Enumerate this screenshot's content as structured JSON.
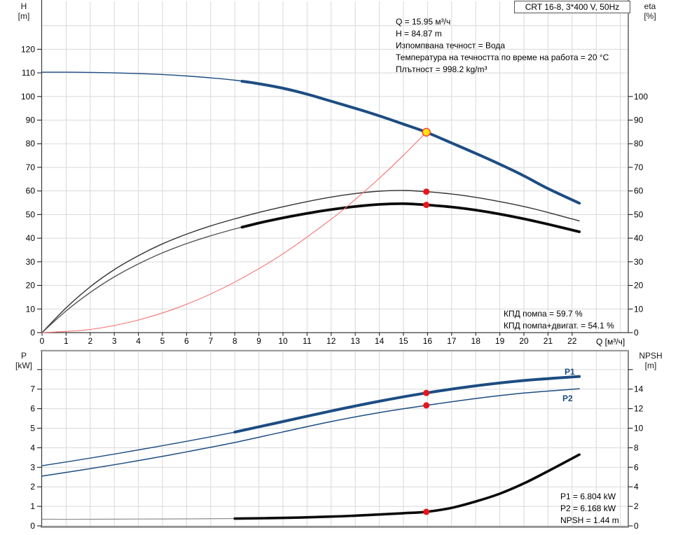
{
  "title_box": {
    "label": "CRT 16-8, 3*400 V, 50Hz"
  },
  "top_chart": {
    "left_axis_title": [
      "H",
      "[m]"
    ],
    "right_axis_title": [
      "eta",
      "[%]"
    ],
    "x_axis_label": "Q [м³/ч]",
    "info_lines": [
      "Q = 15.95 м³/ч",
      "H = 84.87 m",
      "Изпомпвана течност = Вода",
      "Температура на течността по време на работа = 20 °C",
      "Плътност = 998.2 kg/m³"
    ],
    "efficiency_lines": [
      "КПД помпа = 59.7 %",
      "КПД помпа+двигат. = 54.1 %"
    ]
  },
  "bottom_chart": {
    "left_axis_title": [
      "P",
      "[kW]"
    ],
    "right_axis_title": [
      "NPSH",
      "[m]"
    ],
    "curve_labels": {
      "p1": "P1",
      "p2": "P2"
    },
    "result_lines": [
      "P1 = 6.804 kW",
      "P2 = 6.168 kW",
      "NPSH = 1.44 m"
    ]
  },
  "colors": {
    "navy": "#1d4d82",
    "system_red": "#f47272",
    "dot_red": "#e8151c",
    "op_yellow": "#ffe40a",
    "op_ring": "#ff3c3c",
    "grid": "#d9d9d9",
    "axis": "#3a3a3a",
    "border_gray": "#909090",
    "eta_pump": "#333333",
    "eta_total_thin": "#555555",
    "black": "#0a0a0a",
    "npsh_thin": "#8f8f8f"
  },
  "chart_data": [
    {
      "type": "line",
      "title": "CRT 16-8, 3*400 V, 50Hz — QH / efficiency curves",
      "xlabel": "Q [м³/ч]",
      "ylabel_left": "H [m]",
      "ylabel_right": "eta [%]",
      "xlim": [
        0,
        24.33
      ],
      "ylim_left": [
        0,
        140.3
      ],
      "ylim_right": [
        0,
        140.3
      ],
      "x_ticks": [
        0,
        1,
        2,
        3,
        4,
        5,
        6,
        7,
        8,
        9,
        10,
        11,
        12,
        13,
        14,
        15,
        16,
        17,
        18,
        19,
        20,
        21,
        22
      ],
      "left_ticks": [
        0,
        10,
        20,
        30,
        40,
        50,
        60,
        70,
        80,
        90,
        100,
        110,
        120
      ],
      "right_ticks": [
        0,
        10,
        20,
        30,
        40,
        50,
        60,
        70,
        80,
        90,
        100
      ],
      "grid": true,
      "series": [
        {
          "name": "h-curve",
          "color": "#1d4d82",
          "thin": 1.4,
          "thick": 4,
          "thick_from": 8.3,
          "x": [
            0,
            1,
            2,
            3,
            4,
            5,
            6,
            7,
            8,
            9,
            10,
            11,
            12,
            13,
            14,
            15,
            15.95,
            17,
            18,
            19,
            20,
            21,
            22.3
          ],
          "y": [
            110.3,
            110.3,
            110.2,
            110.0,
            109.7,
            109.3,
            108.7,
            107.9,
            106.9,
            105.4,
            103.5,
            101.0,
            98.0,
            95.0,
            91.8,
            88.3,
            84.87,
            80.3,
            75.9,
            71.3,
            66.4,
            61.0,
            54.8
          ]
        },
        {
          "name": "eta-pump-curve",
          "color": "#333333",
          "thin": 1.4,
          "thick": 1.4,
          "thick_from": null,
          "x": [
            0,
            1,
            2,
            3,
            4,
            5,
            6,
            7,
            8,
            9,
            10,
            11,
            12,
            13,
            14,
            15,
            15.95,
            17,
            18,
            19,
            20,
            21,
            22.3
          ],
          "y": [
            0,
            10.5,
            19.4,
            26.7,
            32.6,
            37.6,
            41.7,
            45.2,
            48.2,
            50.9,
            53.3,
            55.5,
            57.4,
            58.9,
            59.9,
            60.2,
            59.7,
            58.7,
            57.3,
            55.5,
            53.4,
            50.9,
            47.3
          ]
        },
        {
          "name": "eta-total-curve",
          "color": "#555555",
          "thick_color": "#0a0a0a",
          "thin": 1.4,
          "thick": 3.8,
          "thick_from": 8.3,
          "x": [
            0,
            1,
            2,
            3,
            4,
            5,
            6,
            7,
            8,
            9,
            10,
            11,
            12,
            13,
            14,
            15,
            15.95,
            17,
            18,
            19,
            20,
            21,
            22.3
          ],
          "y": [
            0,
            9.2,
            17.0,
            23.6,
            29.1,
            33.8,
            37.7,
            41.0,
            43.9,
            46.4,
            48.6,
            50.5,
            52.1,
            53.4,
            54.3,
            54.6,
            54.1,
            53.2,
            51.9,
            50.2,
            48.2,
            45.9,
            42.7
          ]
        },
        {
          "name": "system-curve",
          "color": "#f47272",
          "thin": 1.1,
          "thick": 1.1,
          "thick_from": null,
          "x": [
            0,
            2,
            4,
            6,
            8,
            10,
            12,
            13,
            14,
            15,
            15.95
          ],
          "y": [
            0,
            1.33,
            5.34,
            12.0,
            21.4,
            33.4,
            48.0,
            56.4,
            65.4,
            75.1,
            84.87
          ]
        }
      ],
      "markers": [
        {
          "name": "operating-point",
          "q": 15.95,
          "v": 84.87,
          "style": "yellow"
        },
        {
          "name": "eta-pump-dot",
          "q": 15.95,
          "v": 59.7,
          "style": "red"
        },
        {
          "name": "eta-total-dot",
          "q": 15.95,
          "v": 54.1,
          "style": "red"
        }
      ]
    },
    {
      "type": "line",
      "title": "Power and NPSH curves",
      "xlabel": "Q [м³/ч]",
      "ylabel_left": "P [kW]",
      "ylabel_right": "NPSH [m]",
      "xlim": [
        0,
        24.33
      ],
      "ylim_left": [
        0,
        9.0
      ],
      "ylim_right": [
        0,
        18.0
      ],
      "left_ticks": [
        0,
        1,
        2,
        3,
        4,
        5,
        6,
        7
      ],
      "left_minor_ticks": [
        8
      ],
      "right_ticks": [
        0,
        2,
        4,
        6,
        8,
        10,
        12,
        14
      ],
      "right_minor_ticks": [
        16
      ],
      "grid": true,
      "series": [
        {
          "name": "p1-curve",
          "color": "#1d4d82",
          "thin": 1.4,
          "thick": 4,
          "thick_from": 8.0,
          "x": [
            0,
            2,
            4,
            6,
            8,
            10,
            12,
            14,
            15.95,
            18,
            20,
            22.3
          ],
          "y": [
            3.08,
            3.47,
            3.89,
            4.33,
            4.8,
            5.34,
            5.88,
            6.38,
            6.804,
            7.17,
            7.44,
            7.65
          ]
        },
        {
          "name": "p2-curve",
          "color": "#1d4d82",
          "thin": 1.5,
          "thick": 1.5,
          "thick_from": null,
          "x": [
            0,
            2,
            4,
            6,
            8,
            10,
            12,
            14,
            15.95,
            18,
            20,
            22.3
          ],
          "y": [
            2.55,
            2.93,
            3.34,
            3.79,
            4.27,
            4.81,
            5.34,
            5.8,
            6.168,
            6.52,
            6.8,
            7.02
          ]
        },
        {
          "name": "npsh-curve",
          "color": "#8f8f8f",
          "thick_color": "#0a0a0a",
          "axis": "right",
          "thin": 1.2,
          "thick": 3.6,
          "thick_from": 8.0,
          "x": [
            0,
            2,
            4,
            6,
            8,
            10,
            12,
            13,
            14,
            15,
            15.95,
            17,
            18,
            19,
            20,
            21,
            22.3
          ],
          "y": [
            0.68,
            0.68,
            0.7,
            0.72,
            0.75,
            0.82,
            0.95,
            1.05,
            1.17,
            1.3,
            1.44,
            1.85,
            2.5,
            3.3,
            4.35,
            5.6,
            7.3
          ]
        }
      ],
      "markers": [
        {
          "name": "p1-dot",
          "q": 15.95,
          "v": 6.804,
          "style": "red"
        },
        {
          "name": "p2-dot",
          "q": 15.95,
          "v": 6.168,
          "style": "red"
        },
        {
          "name": "npsh-dot",
          "q": 15.95,
          "v": 1.44,
          "axis": "right",
          "style": "red"
        }
      ]
    }
  ]
}
